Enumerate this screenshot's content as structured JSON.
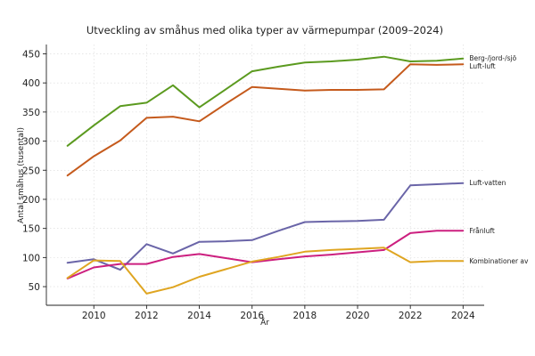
{
  "chart_data": {
    "type": "line",
    "title": "Utveckling av småhus med olika typer av värmepumpar (2009–2024)",
    "xlabel": "År",
    "ylabel": "Antal småhus (tusental)",
    "x": [
      2009,
      2010,
      2011,
      2012,
      2013,
      2014,
      2015,
      2016,
      2017,
      2018,
      2019,
      2020,
      2021,
      2022,
      2023,
      2024
    ],
    "xlim": [
      2008.2,
      2024.8
    ],
    "ylim": [
      18,
      466
    ],
    "xticks": [
      "2010",
      "2012",
      "2014",
      "2016",
      "2018",
      "2020",
      "2022",
      "2024"
    ],
    "yticks": [
      "50",
      "100",
      "150",
      "200",
      "250",
      "300",
      "350",
      "400",
      "450"
    ],
    "grid": true,
    "legend": "labels at line ends",
    "series": [
      {
        "name": "Berg-/jord-/sjö",
        "color": "#5b9a1f",
        "values": [
          292,
          327,
          360,
          366,
          396,
          358,
          389,
          420,
          428,
          435,
          437,
          440,
          445,
          437,
          438,
          442
        ]
      },
      {
        "name": "Luft-luft",
        "color": "#c55a1c",
        "values": [
          241,
          274,
          301,
          340,
          342,
          334,
          364,
          393,
          390,
          387,
          388,
          388,
          389,
          432,
          431,
          432
        ]
      },
      {
        "name": "Luft-vatten",
        "color": "#6a65a8",
        "values": [
          91,
          97,
          79,
          123,
          107,
          127,
          128,
          130,
          146,
          161,
          162,
          163,
          165,
          224,
          226,
          228
        ]
      },
      {
        "name": "Frånluft",
        "color": "#cc1f7f",
        "values": [
          64,
          83,
          89,
          89,
          101,
          106,
          99,
          92,
          97,
          102,
          105,
          109,
          113,
          142,
          146,
          146
        ]
      },
      {
        "name": "Kombinationer av",
        "color": "#dfa521",
        "values": [
          65,
          95,
          94,
          38,
          49,
          67,
          80,
          93,
          101,
          110,
          113,
          115,
          117,
          92,
          94,
          94
        ]
      }
    ]
  }
}
